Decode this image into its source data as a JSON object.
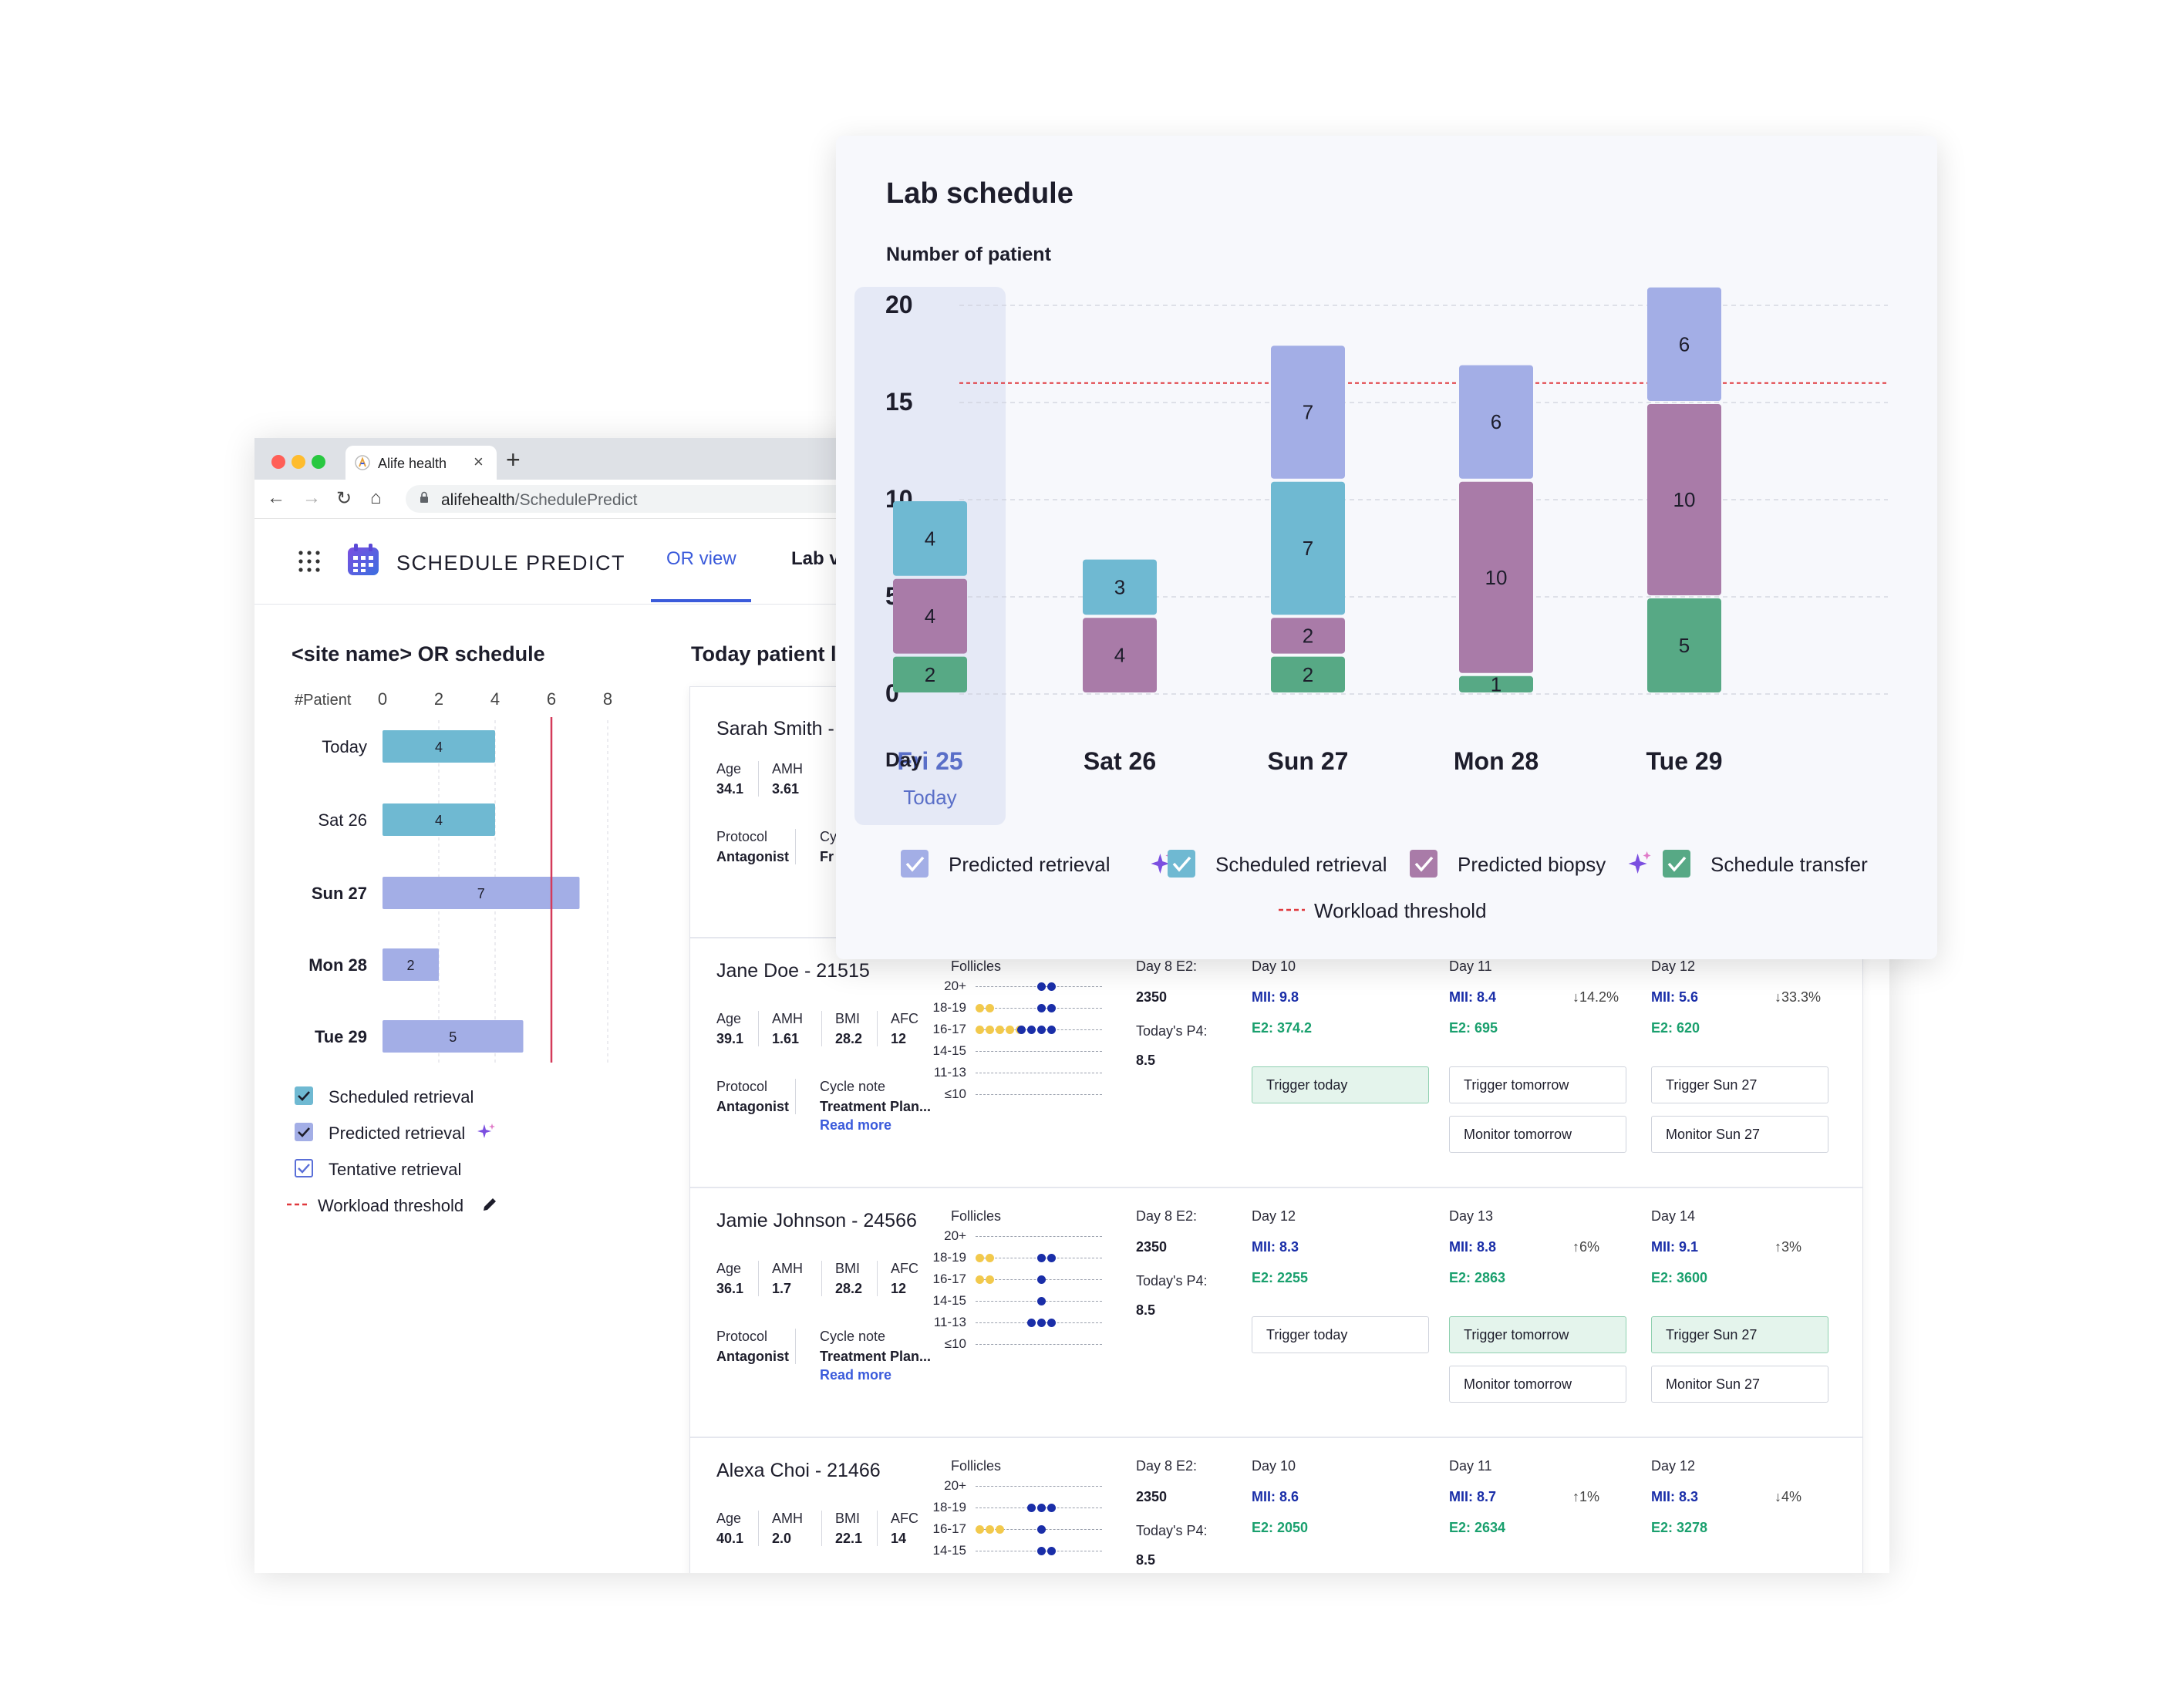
{
  "browser": {
    "tab_title": "Alife health",
    "new_tab": "+",
    "close": "×",
    "url_host": "alifehealth",
    "url_path": "/SchedulePredict"
  },
  "app": {
    "name": "SCHEDULE PREDICT",
    "tabs": [
      "OR view",
      "Lab v"
    ]
  },
  "or_schedule": {
    "title": "<site name> OR schedule",
    "axis_label": "#Patient",
    "ticks": [
      0,
      2,
      4,
      6,
      8
    ],
    "threshold": 6,
    "rows": [
      {
        "label": "Today",
        "value": 4,
        "color": "#6fb9d2",
        "bold": false
      },
      {
        "label": "Sat 26",
        "value": 4,
        "color": "#6fb9d2",
        "bold": false
      },
      {
        "label": "Sun 27",
        "value": 7,
        "color": "#a3aee6",
        "bold": true
      },
      {
        "label": "Mon 28",
        "value": 2,
        "color": "#a3aee6",
        "bold": true
      },
      {
        "label": "Tue 29",
        "value": 5,
        "color": "#a3aee6",
        "bold": true
      }
    ],
    "legend": [
      "Scheduled retrieval",
      "Predicted retrieval",
      "Tentative retrieval",
      "Workload threshold"
    ]
  },
  "patients": {
    "title": "Today patient l",
    "labels": {
      "age": "Age",
      "amh": "AMH",
      "bmi": "BMI",
      "afc": "AFC",
      "protocol": "Protocol",
      "cycle_note": "Cycle note",
      "read_more": "Read more",
      "follicles": "Follicles",
      "e2_label": "Day 8 E2:",
      "p4_label": "Today's P4:"
    },
    "follicle_bins": [
      "20+",
      "18-19",
      "16-17",
      "14-15",
      "11-13",
      "≤10"
    ],
    "rows": [
      {
        "name": "Sarah Smith -",
        "age": "34.1",
        "amh": "3.61",
        "protocol": "Antagonist",
        "cycle_note_short": "Cy",
        "cycle_value_short": "Fr"
      },
      {
        "name": "Jane Doe - 21515",
        "age": "39.1",
        "amh": "1.61",
        "bmi": "28.2",
        "afc": "12",
        "protocol": "Antagonist",
        "cycle_value": "Treatment Plan...",
        "follicles": [
          [
            0,
            2
          ],
          [
            2,
            2
          ],
          [
            5,
            4
          ],
          [
            0,
            0
          ],
          [
            0,
            0
          ],
          [
            0,
            0
          ]
        ],
        "e2": "2350",
        "p4": "8.5",
        "days": [
          {
            "day": "Day 10",
            "mii": "MII: 9.8",
            "e2": "E2: 374.2",
            "trend": "",
            "buttons": [
              {
                "label": "Trigger today",
                "on": true
              }
            ]
          },
          {
            "day": "Day 11",
            "mii": "MII: 8.4",
            "e2": "E2: 695",
            "trend": "↓14.2%",
            "buttons": [
              {
                "label": "Trigger tomorrow",
                "on": false
              },
              {
                "label": "Monitor tomorrow",
                "on": false
              }
            ]
          },
          {
            "day": "Day 12",
            "mii": "MII: 5.6",
            "e2": "E2: 620",
            "trend": "↓33.3%",
            "buttons": [
              {
                "label": "Trigger Sun 27",
                "on": false
              },
              {
                "label": "Monitor Sun 27",
                "on": false
              }
            ]
          }
        ]
      },
      {
        "name": "Jamie Johnson - 24566",
        "age": "36.1",
        "amh": "1.7",
        "bmi": "28.2",
        "afc": "12",
        "protocol": "Antagonist",
        "cycle_value": "Treatment Plan...",
        "follicles": [
          [
            0,
            0
          ],
          [
            2,
            2
          ],
          [
            2,
            1
          ],
          [
            0,
            1
          ],
          [
            0,
            3
          ],
          [
            0,
            0
          ]
        ],
        "e2": "2350",
        "p4": "8.5",
        "days": [
          {
            "day": "Day 12",
            "mii": "MII: 8.3",
            "e2": "E2: 2255",
            "trend": "",
            "buttons": [
              {
                "label": "Trigger today",
                "on": false
              }
            ]
          },
          {
            "day": "Day 13",
            "mii": "MII: 8.8",
            "e2": "E2: 2863",
            "trend": "↑6%",
            "buttons": [
              {
                "label": "Trigger tomorrow",
                "on": true
              },
              {
                "label": "Monitor tomorrow",
                "on": false
              }
            ]
          },
          {
            "day": "Day 14",
            "mii": "MII: 9.1",
            "e2": "E2: 3600",
            "trend": "↑3%",
            "buttons": [
              {
                "label": "Trigger Sun 27",
                "on": true
              },
              {
                "label": "Monitor Sun 27",
                "on": false
              }
            ]
          }
        ]
      },
      {
        "name": "Alexa Choi - 21466",
        "age": "40.1",
        "amh": "2.0",
        "bmi": "22.1",
        "afc": "14",
        "follicles": [
          [
            0,
            0
          ],
          [
            0,
            3
          ],
          [
            3,
            1
          ],
          [
            0,
            2
          ]
        ],
        "e2": "2350",
        "p4": "8.5",
        "days": [
          {
            "day": "Day 10",
            "mii": "MII: 8.6",
            "e2": "E2: 2050",
            "trend": "",
            "buttons": []
          },
          {
            "day": "Day 11",
            "mii": "MII: 8.7",
            "e2": "E2: 2634",
            "trend": "↑1%",
            "buttons": []
          },
          {
            "day": "Day 12",
            "mii": "MII: 8.3",
            "e2": "E2: 3278",
            "trend": "↓4%",
            "buttons": []
          }
        ]
      }
    ]
  },
  "lab_schedule": {
    "title": "Lab schedule",
    "ylabel": "Number of patient",
    "xlabel": "Day",
    "today_label": "Today",
    "legend": [
      "Predicted retrieval",
      "Scheduled retrieval",
      "Predicted biopsy",
      "Schedule transfer",
      "Workload threshold"
    ],
    "colors": {
      "Predicted retrieval": "#a3aee6",
      "Scheduled retrieval": "#6fb9d2",
      "Predicted biopsy": "#a97ba8",
      "Schedule transfer": "#57a985",
      "threshold": "#e0393e"
    }
  },
  "chart_data": {
    "type": "bar",
    "stacked": true,
    "title": "Lab schedule",
    "ylabel": "Number of patient",
    "xlabel": "Day",
    "categories": [
      "Fri 25",
      "Sat 26",
      "Sun 27",
      "Mon 28",
      "Tue 29"
    ],
    "series": [
      {
        "name": "Schedule transfer",
        "values": [
          2,
          0,
          2,
          1,
          5
        ]
      },
      {
        "name": "Predicted biopsy",
        "values": [
          4,
          4,
          2,
          10,
          10
        ]
      },
      {
        "name": "Scheduled retrieval",
        "values": [
          4,
          3,
          7,
          0,
          0
        ]
      },
      {
        "name": "Predicted retrieval",
        "values": [
          0,
          0,
          7,
          6,
          6
        ]
      }
    ],
    "ylim": [
      0,
      20
    ],
    "yticks": [
      0,
      5,
      10,
      15,
      20
    ],
    "threshold": 16,
    "highlight_category": "Fri 25",
    "grid": true,
    "legend_position": "bottom"
  }
}
